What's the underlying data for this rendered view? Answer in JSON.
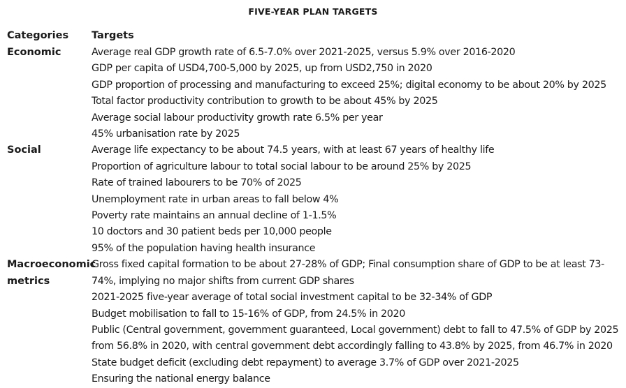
{
  "title": "FIVE-YEAR PLAN TARGETS",
  "headers": {
    "categories": "Categories",
    "targets": "Targets"
  },
  "sections": [
    {
      "category": "Economic",
      "targets": [
        "Average real GDP growth rate of 6.5-7.0% over 2021-2025, versus 5.9% over 2016-2020",
        "GDP per capita of USD4,700-5,000 by 2025, up from USD2,750 in 2020",
        "GDP proportion of processing and manufacturing to exceed 25%; digital economy to be about 20% by 2025",
        "Total factor productivity contribution to growth to be about 45% by 2025",
        "Average social labour productivity growth rate 6.5% per year",
        "45% urbanisation rate by 2025"
      ]
    },
    {
      "category": "Social",
      "targets": [
        "Average life expectancy to be about 74.5 years, with at least 67 years of healthy life",
        "Proportion of agriculture labour to total social labour to be around 25% by 2025",
        "Rate of trained labourers to be 70% of 2025",
        "Unemployment rate in urban areas to fall below 4%",
        "Poverty rate maintains an annual decline of 1-1.5%",
        "10 doctors and 30 patient beds per 10,000 people",
        "95% of the population having health insurance"
      ]
    },
    {
      "category": "Macroeconomic\nmetrics",
      "targets": [
        "Gross fixed capital formation to be about 27-28% of GDP; Final consumption share of GDP to be at least 73-74%, implying no major shifts from current GDP shares",
        "2021-2025 five-year average of total social investment capital to be 32-34% of GDP",
        "Budget mobilisation to fall to 15-16% of GDP, from 24.5% in 2020",
        "Public (Central government, government guaranteed, Local government) debt to fall to 47.5% of GDP by 2025 from 56.8% in 2020, with central government debt accordingly falling to 43.8% by 2025, from 46.7% in 2020",
        "State budget deficit (excluding debt repayment) to average 3.7% of GDP over 2021-2025",
        "Ensuring the national energy balance"
      ]
    }
  ]
}
